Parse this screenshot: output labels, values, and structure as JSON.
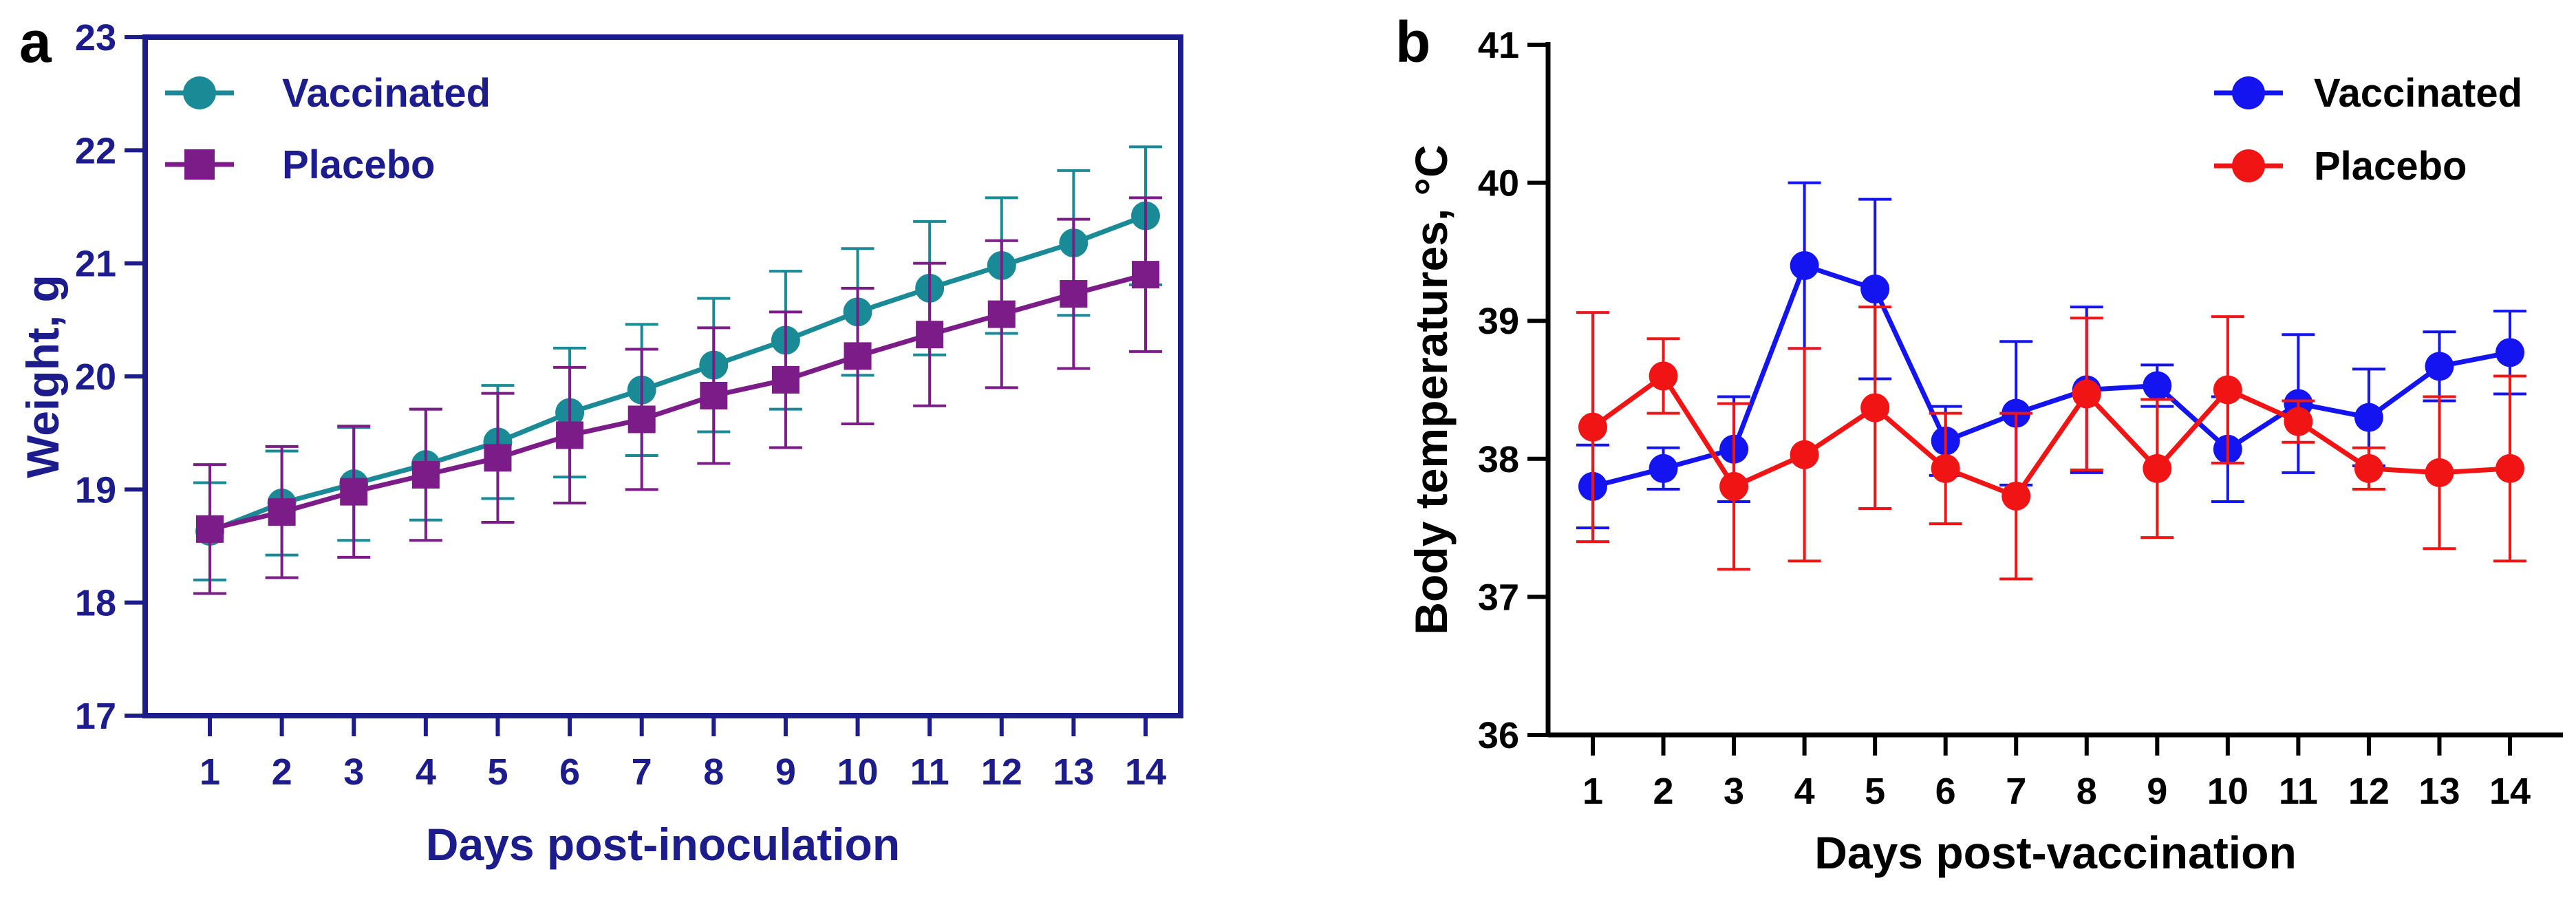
{
  "chart_data": [
    {
      "type": "line",
      "panel_label": "a",
      "title": "",
      "xlabel": "Days post-inoculation",
      "ylabel": "Weight, g",
      "x": [
        1,
        2,
        3,
        4,
        5,
        6,
        7,
        8,
        9,
        10,
        11,
        12,
        13,
        14
      ],
      "x_tick_labels": [
        "1",
        "2",
        "3",
        "4",
        "5",
        "6",
        "7",
        "8",
        "9",
        "10",
        "11",
        "12",
        "13",
        "14"
      ],
      "ylim": [
        17,
        23
      ],
      "y_ticks": [
        17,
        18,
        19,
        20,
        21,
        22,
        23
      ],
      "y_tick_labels": [
        "17",
        "18",
        "19",
        "20",
        "21",
        "22",
        "23"
      ],
      "legend_position": "top-left",
      "series": [
        {
          "name": "Vaccinated",
          "color": "#1a8a96",
          "marker": "circle",
          "values": [
            18.63,
            18.88,
            19.05,
            19.22,
            19.42,
            19.68,
            19.88,
            20.1,
            20.32,
            20.57,
            20.78,
            20.98,
            21.18,
            21.42
          ],
          "error": [
            0.43,
            0.46,
            0.5,
            0.49,
            0.5,
            0.57,
            0.58,
            0.59,
            0.61,
            0.56,
            0.59,
            0.6,
            0.64,
            0.61
          ]
        },
        {
          "name": "Placebo",
          "color": "#7b1c88",
          "marker": "square",
          "values": [
            18.65,
            18.8,
            18.98,
            19.13,
            19.28,
            19.48,
            19.62,
            19.83,
            19.97,
            20.18,
            20.37,
            20.55,
            20.73,
            20.9
          ],
          "error": [
            0.57,
            0.58,
            0.58,
            0.58,
            0.57,
            0.6,
            0.62,
            0.6,
            0.6,
            0.6,
            0.63,
            0.65,
            0.66,
            0.68
          ]
        }
      ]
    },
    {
      "type": "line",
      "panel_label": "b",
      "title": "",
      "xlabel": "Days post-vaccination",
      "ylabel": "Body temperatures, °C",
      "x": [
        1,
        2,
        3,
        4,
        5,
        6,
        7,
        8,
        9,
        10,
        11,
        12,
        13,
        14
      ],
      "x_tick_labels": [
        "1",
        "2",
        "3",
        "4",
        "5",
        "6",
        "7",
        "8",
        "9",
        "10",
        "11",
        "12",
        "13",
        "14"
      ],
      "ylim": [
        36,
        41
      ],
      "y_ticks": [
        36,
        37,
        38,
        39,
        40,
        41
      ],
      "y_tick_labels": [
        "36",
        "37",
        "38",
        "39",
        "40",
        "41"
      ],
      "legend_position": "top-right",
      "series": [
        {
          "name": "Vaccinated",
          "color": "#1414f0",
          "marker": "circle",
          "values": [
            37.8,
            37.93,
            38.07,
            39.4,
            39.23,
            38.13,
            38.33,
            38.5,
            38.53,
            38.07,
            38.4,
            38.3,
            38.67,
            38.77
          ],
          "error": [
            0.3,
            0.15,
            0.38,
            0.6,
            0.65,
            0.25,
            0.52,
            0.6,
            0.15,
            0.38,
            0.5,
            0.35,
            0.25,
            0.3
          ]
        },
        {
          "name": "Placebo",
          "color": "#f01414",
          "marker": "circle",
          "values": [
            38.23,
            38.6,
            37.8,
            38.03,
            38.37,
            37.93,
            37.73,
            38.47,
            37.93,
            38.5,
            38.27,
            37.93,
            37.9,
            37.93
          ],
          "error": [
            0.83,
            0.27,
            0.6,
            0.77,
            0.73,
            0.4,
            0.6,
            0.55,
            0.5,
            0.53,
            0.15,
            0.15,
            0.55,
            0.67
          ]
        }
      ]
    }
  ]
}
